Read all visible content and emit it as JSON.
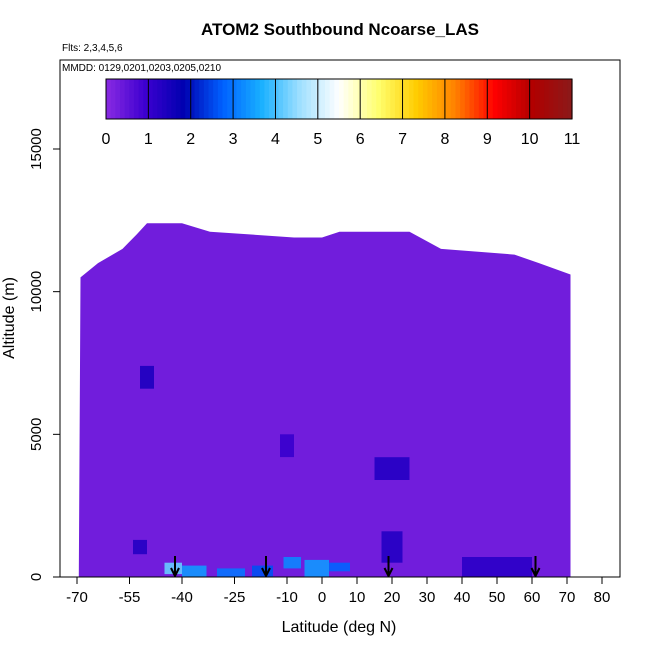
{
  "chart_data": {
    "type": "heatmap",
    "title": "ATOM2 Southbound Ncoarse_LAS",
    "subtitle_flights": "Flts: 2,3,4,5,6",
    "subtitle_dates": "MMDD: 0129,0201,0203,0205,0210",
    "xlabel": "Latitude (deg N)",
    "ylabel": "Altitude (m)",
    "xlim": [
      -70,
      85
    ],
    "ylim": [
      0,
      17500
    ],
    "x_ticks": [
      -70,
      -55,
      -40,
      -25,
      -10,
      0,
      10,
      20,
      30,
      40,
      50,
      60,
      70,
      80
    ],
    "x_tick_labels": [
      "-70",
      "-55",
      "-40",
      "-25",
      "-10",
      "0",
      "10",
      "20",
      "30",
      "40",
      "50",
      "60",
      "70",
      "80"
    ],
    "y_ticks": [
      0,
      5000,
      10000,
      15000
    ],
    "y_tick_labels": [
      "0",
      "5000",
      "10000",
      "15000"
    ],
    "colorbar": {
      "min": 0,
      "max": 11,
      "ticks": [
        "0",
        "1",
        "2",
        "3",
        "4",
        "5",
        "6",
        "7",
        "8",
        "9",
        "10",
        "11"
      ],
      "colors": [
        "#8a2be2",
        "#3d00d0",
        "#0000b0",
        "#0060ff",
        "#18b0ff",
        "#a0e0ff",
        "#ffffff",
        "#ffff70",
        "#ffcc00",
        "#ff8000",
        "#ff0000",
        "#b00000",
        "#8b1a1a"
      ]
    },
    "background_value": 0.3,
    "data_extent": {
      "x_range": [
        -69.5,
        71
      ],
      "top_profile": [
        [
          -69,
          10500
        ],
        [
          -64,
          11000
        ],
        [
          -57,
          11500
        ],
        [
          -53,
          12000
        ],
        [
          -50,
          12400
        ],
        [
          -40,
          12400
        ],
        [
          -32,
          12100
        ],
        [
          -8,
          11900
        ],
        [
          0,
          11900
        ],
        [
          5,
          12100
        ],
        [
          25,
          12100
        ],
        [
          34,
          11500
        ],
        [
          55,
          11300
        ],
        [
          62,
          11000
        ],
        [
          71,
          10600
        ]
      ]
    },
    "high_cells": [
      {
        "lat": [
          -54,
          -50
        ],
        "alt": [
          800,
          1300
        ],
        "value": 1.3
      },
      {
        "lat": [
          -45,
          -40
        ],
        "alt": [
          100,
          500
        ],
        "value": 4.2
      },
      {
        "lat": [
          -40,
          -33
        ],
        "alt": [
          0,
          400
        ],
        "value": 3.4
      },
      {
        "lat": [
          -30,
          -22
        ],
        "alt": [
          0,
          300
        ],
        "value": 3.0
      },
      {
        "lat": [
          -20,
          -14
        ],
        "alt": [
          0,
          400
        ],
        "value": 2.6
      },
      {
        "lat": [
          -11,
          -6
        ],
        "alt": [
          300,
          700
        ],
        "value": 3.2
      },
      {
        "lat": [
          -5,
          2
        ],
        "alt": [
          0,
          600
        ],
        "value": 3.4
      },
      {
        "lat": [
          2,
          8
        ],
        "alt": [
          200,
          500
        ],
        "value": 2.8
      },
      {
        "lat": [
          15,
          25
        ],
        "alt": [
          3400,
          4200
        ],
        "value": 1.3
      },
      {
        "lat": [
          17,
          23
        ],
        "alt": [
          500,
          1600
        ],
        "value": 1.3
      },
      {
        "lat": [
          -52,
          -48
        ],
        "alt": [
          6600,
          7400
        ],
        "value": 1.4
      },
      {
        "lat": [
          -12,
          -8
        ],
        "alt": [
          4200,
          5000
        ],
        "value": 1.0
      },
      {
        "lat": [
          40,
          60
        ],
        "alt": [
          0,
          700
        ],
        "value": 1.2
      }
    ],
    "flight_arrows_lat": [
      -42,
      -16,
      19,
      61
    ]
  }
}
